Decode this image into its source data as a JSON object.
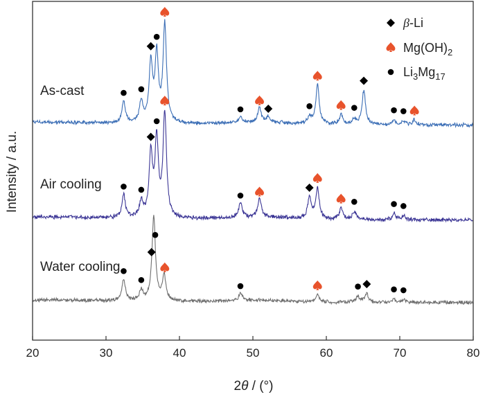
{
  "chart_data": {
    "type": "line",
    "xlabel_prefix": "2",
    "xlabel_theta": "θ",
    "xlabel_suffix": " / (°)",
    "ylabel": "Intensity / a.u.",
    "xlim": [
      20,
      80
    ],
    "xticks": [
      "20",
      "30",
      "40",
      "50",
      "60",
      "70",
      "80"
    ],
    "grid": false,
    "legend_position": "top-right",
    "legend": [
      {
        "marker": "diamond",
        "color": "#000000",
        "label_prefix": "β",
        "label_suffix": "-Li"
      },
      {
        "marker": "spade",
        "color": "#e8532c",
        "label_main": "Mg(OH)",
        "label_sub": "2"
      },
      {
        "marker": "dot",
        "color": "#000000",
        "label_main": "Li",
        "label_sub1": "3",
        "label_mid": "Mg",
        "label_sub2": "17"
      }
    ],
    "series": [
      {
        "name": "As-cast",
        "color": "#3a6db5",
        "peaks": [
          [
            32.4,
            0.22
          ],
          [
            34.8,
            0.22
          ],
          [
            36.1,
            0.6
          ],
          [
            36.9,
            0.67
          ],
          [
            38.0,
            1.0
          ],
          [
            48.3,
            0.06
          ],
          [
            50.9,
            0.15
          ],
          [
            52.1,
            0.06
          ],
          [
            57.7,
            0.07
          ],
          [
            58.8,
            0.4
          ],
          [
            62.0,
            0.1
          ],
          [
            63.8,
            0.06
          ],
          [
            65.1,
            0.35
          ],
          [
            69.2,
            0.05
          ],
          [
            70.5,
            0.04
          ],
          [
            72.0,
            0.05
          ]
        ],
        "markers": [
          {
            "type": "dot",
            "x": 32.4
          },
          {
            "type": "dot",
            "x": 34.8
          },
          {
            "type": "diamond",
            "x": 36.1
          },
          {
            "type": "dot",
            "x": 36.9
          },
          {
            "type": "spade",
            "x": 38.0
          },
          {
            "type": "dot",
            "x": 48.3
          },
          {
            "type": "spade",
            "x": 50.9
          },
          {
            "type": "diamond",
            "x": 52.1
          },
          {
            "type": "dot",
            "x": 57.7
          },
          {
            "type": "spade",
            "x": 58.8
          },
          {
            "type": "spade",
            "x": 62.0
          },
          {
            "type": "dot",
            "x": 63.8
          },
          {
            "type": "diamond",
            "x": 65.1
          },
          {
            "type": "dot",
            "x": 69.2
          },
          {
            "type": "dot",
            "x": 70.5
          },
          {
            "type": "spade",
            "x": 72.0
          }
        ]
      },
      {
        "name": "Air cooling",
        "color": "#3b3595",
        "peaks": [
          [
            32.4,
            0.22
          ],
          [
            34.8,
            0.15
          ],
          [
            36.1,
            0.6
          ],
          [
            36.9,
            0.73
          ],
          [
            38.0,
            1.0
          ],
          [
            48.3,
            0.14
          ],
          [
            50.9,
            0.18
          ],
          [
            57.7,
            0.2
          ],
          [
            58.8,
            0.3
          ],
          [
            62.0,
            0.11
          ],
          [
            63.8,
            0.08
          ],
          [
            69.2,
            0.06
          ],
          [
            70.5,
            0.04
          ]
        ],
        "markers": [
          {
            "type": "dot",
            "x": 32.4
          },
          {
            "type": "dot",
            "x": 34.8
          },
          {
            "type": "diamond",
            "x": 36.1
          },
          {
            "type": "dot",
            "x": 36.9
          },
          {
            "type": "spade",
            "x": 38.0
          },
          {
            "type": "dot",
            "x": 48.3
          },
          {
            "type": "spade",
            "x": 50.9
          },
          {
            "type": "diamond",
            "x": 57.7
          },
          {
            "type": "spade",
            "x": 58.8
          },
          {
            "type": "spade",
            "x": 62.0
          },
          {
            "type": "dot",
            "x": 63.8
          },
          {
            "type": "dot",
            "x": 69.2
          },
          {
            "type": "dot",
            "x": 70.5
          }
        ]
      },
      {
        "name": "Water cooling",
        "color": "#6e6e6e",
        "peaks": [
          [
            32.4,
            0.25
          ],
          [
            34.8,
            0.12
          ],
          [
            36.5,
            1.0
          ],
          [
            37.9,
            0.3
          ],
          [
            48.3,
            0.08
          ],
          [
            58.8,
            0.09
          ],
          [
            64.3,
            0.07
          ],
          [
            65.5,
            0.1
          ],
          [
            69.2,
            0.04
          ],
          [
            70.5,
            0.03
          ]
        ],
        "markers": [
          {
            "type": "dot",
            "x": 32.4
          },
          {
            "type": "dot",
            "x": 34.8
          },
          {
            "type": "diamond",
            "x": 36.2
          },
          {
            "type": "dot",
            "x": 36.7
          },
          {
            "type": "spade",
            "x": 38.0
          },
          {
            "type": "dot",
            "x": 48.3
          },
          {
            "type": "spade",
            "x": 58.8
          },
          {
            "type": "dot",
            "x": 64.3
          },
          {
            "type": "diamond",
            "x": 65.5
          },
          {
            "type": "dot",
            "x": 69.2
          },
          {
            "type": "dot",
            "x": 70.5
          }
        ]
      }
    ]
  }
}
